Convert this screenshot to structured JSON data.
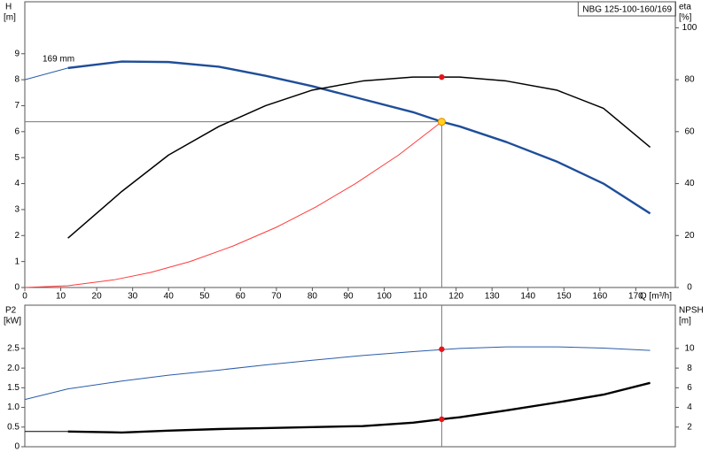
{
  "chart_data": [
    {
      "type": "line",
      "title": "NBG 125-100-160/169",
      "xlabel": "Q [m³/h]",
      "ylabel": "H",
      "yunit": "[m]",
      "y2label": "eta",
      "y2unit": "[%]",
      "curve_label": "169 mm",
      "xlim": [
        0,
        181
      ],
      "xticks": [
        0,
        10,
        20,
        30,
        40,
        50,
        60,
        70,
        80,
        90,
        100,
        110,
        120,
        130,
        140,
        150,
        160,
        170
      ],
      "ylim": [
        0,
        11
      ],
      "yticks": [
        0,
        1,
        2,
        3,
        4,
        5,
        6,
        7,
        8,
        9
      ],
      "y2lim": [
        0,
        110
      ],
      "y2ticks": [
        0,
        20,
        40,
        60,
        80,
        100
      ],
      "series": [
        {
          "color": "#2a5caa",
          "weight": "thin",
          "x": [
            0,
            12
          ],
          "values": [
            8.0,
            8.45
          ]
        },
        {
          "color": "#1f4e9a",
          "weight": "thick",
          "x": [
            12,
            27,
            40,
            54,
            67,
            80,
            94,
            108,
            116,
            121,
            134,
            148,
            161,
            174
          ],
          "values": [
            8.45,
            8.7,
            8.68,
            8.5,
            8.15,
            7.75,
            7.25,
            6.75,
            6.38,
            6.2,
            5.6,
            4.85,
            4.0,
            2.85
          ]
        },
        {
          "color": "#000000",
          "weight": "medium",
          "axis": "y2",
          "x": [
            12,
            27,
            40,
            54,
            67,
            80,
            94,
            108,
            121,
            134,
            148,
            161,
            174
          ],
          "values": [
            19,
            37,
            51,
            62,
            70,
            76,
            79.5,
            81,
            81,
            79.5,
            76,
            69,
            54
          ]
        },
        {
          "color": "#ff3b3b",
          "weight": "thin",
          "x": [
            0,
            12,
            25,
            35,
            46,
            58,
            70,
            81,
            92,
            104,
            116
          ],
          "values": [
            0,
            0.07,
            0.3,
            0.58,
            1.0,
            1.6,
            2.32,
            3.1,
            4.0,
            5.1,
            6.38
          ]
        }
      ],
      "guide": {
        "x": 116,
        "y": 6.38
      },
      "markers": [
        {
          "x": 116,
          "y": 6.38,
          "color": "#ffd21f"
        },
        {
          "x": 116,
          "y": 81,
          "axis": "y2",
          "color": "#e8141b"
        }
      ]
    },
    {
      "type": "line",
      "ylabel": "P2",
      "yunit": "[kW]",
      "y2label": "NPSH",
      "y2unit": "[m]",
      "xlim": [
        0,
        181
      ],
      "ylim": [
        0,
        3.6
      ],
      "yticks": [
        0,
        0.5,
        {
          "value": 1,
          "label": "1.0"
        },
        1.5,
        {
          "value": 2,
          "label": "2.0"
        },
        2.5
      ],
      "y2lim": [
        0,
        14.4
      ],
      "y2ticks": [
        2,
        4,
        6,
        8,
        10
      ],
      "series": [
        {
          "color": "#2a5caa",
          "weight": "thin",
          "x": [
            0,
            12,
            27,
            40,
            54,
            67,
            80,
            94,
            108,
            121,
            134,
            148,
            161,
            174
          ],
          "values": [
            1.2,
            1.47,
            1.67,
            1.82,
            1.95,
            2.08,
            2.2,
            2.32,
            2.42,
            2.5,
            2.54,
            2.54,
            2.51,
            2.45
          ]
        },
        {
          "color": "#000000",
          "weight": "thin",
          "axis": "y2",
          "x": [
            0,
            12
          ],
          "values": [
            1.55,
            1.55
          ]
        },
        {
          "color": "#000000",
          "weight": "thick",
          "axis": "y2",
          "x": [
            12,
            27,
            40,
            54,
            67,
            80,
            94,
            108,
            116,
            121,
            134,
            148,
            161,
            174
          ],
          "values": [
            1.55,
            1.45,
            1.64,
            1.8,
            1.9,
            2.0,
            2.1,
            2.45,
            2.8,
            3.0,
            3.7,
            4.5,
            5.3,
            6.5
          ]
        }
      ],
      "guide": {
        "x": 116
      },
      "markers": [
        {
          "x": 116,
          "y": 2.48,
          "color": "#e8141b"
        },
        {
          "x": 116,
          "y": 2.8,
          "axis": "y2",
          "color": "#e8141b"
        }
      ]
    }
  ]
}
